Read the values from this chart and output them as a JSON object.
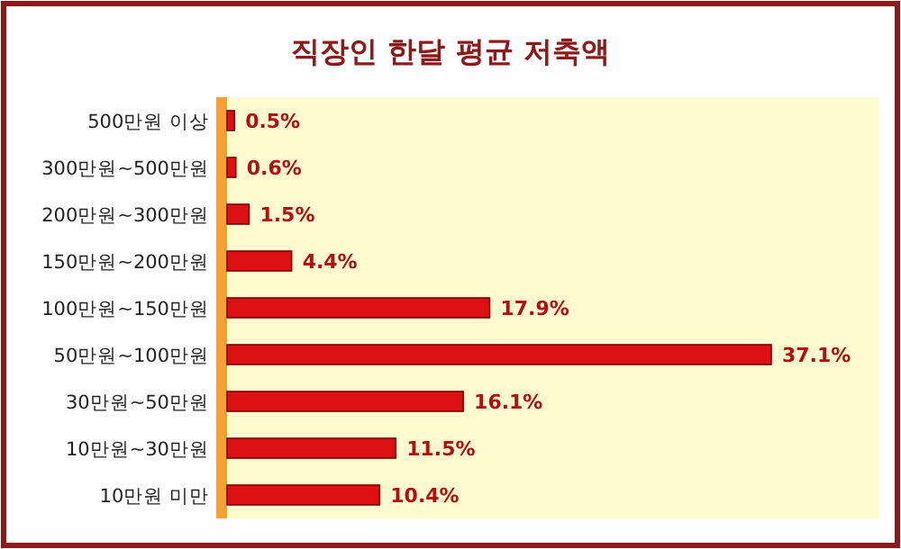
{
  "chart_data": {
    "type": "bar",
    "orientation": "horizontal",
    "title": "직장인 한달 평균 저축액",
    "categories": [
      "500만원 이상",
      "300만원~500만원",
      "200만원~300만원",
      "150만원~200만원",
      "100만원~150만원",
      "50만원~100만원",
      "30만원~50만원",
      "10만원~30만원",
      "10만원 미만"
    ],
    "values": [
      0.5,
      0.6,
      1.5,
      4.4,
      17.9,
      37.1,
      16.1,
      11.5,
      10.4
    ],
    "value_labels": [
      "0.5%",
      "0.6%",
      "1.5%",
      "4.4%",
      "17.9%",
      "37.1%",
      "16.1%",
      "11.5%",
      "10.4%"
    ],
    "color": "#dd1111"
  }
}
